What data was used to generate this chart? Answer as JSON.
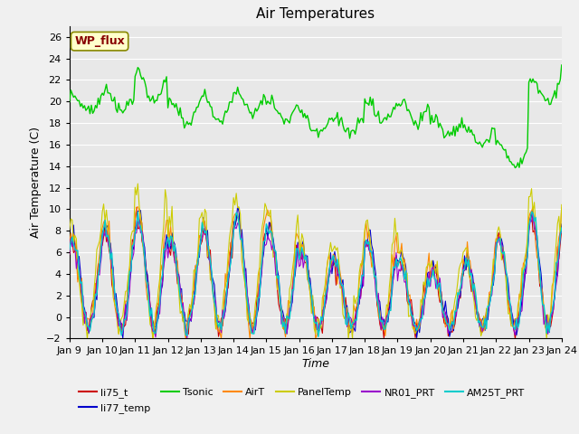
{
  "title": "Air Temperatures",
  "xlabel": "Time",
  "ylabel": "Air Temperature (C)",
  "ylim": [
    -2,
    27
  ],
  "xlim": [
    0,
    360
  ],
  "x_tick_labels": [
    "Jan 9",
    "Jan 10",
    "Jan 11",
    "Jan 12",
    "Jan 13",
    "Jan 14",
    "Jan 15",
    "Jan 16",
    "Jan 17",
    "Jan 18",
    "Jan 19",
    "Jan 20",
    "Jan 21",
    "Jan 22",
    "Jan 23",
    "Jan 24"
  ],
  "x_tick_positions": [
    0,
    24,
    48,
    72,
    96,
    120,
    144,
    168,
    192,
    216,
    240,
    264,
    288,
    312,
    336,
    360
  ],
  "series": {
    "li75_t": {
      "color": "#CC0000",
      "lw": 0.8
    },
    "li77_temp": {
      "color": "#0000CC",
      "lw": 0.8
    },
    "Tsonic": {
      "color": "#00CC00",
      "lw": 1.0
    },
    "AirT": {
      "color": "#FF8800",
      "lw": 0.8
    },
    "PanelTemp": {
      "color": "#CCCC00",
      "lw": 0.8
    },
    "NR01_PRT": {
      "color": "#9900CC",
      "lw": 0.8
    },
    "AM25T_PRT": {
      "color": "#00CCCC",
      "lw": 1.0
    }
  },
  "legend_entries": [
    "li75_t",
    "li77_temp",
    "Tsonic",
    "AirT",
    "PanelTemp",
    "NR01_PRT",
    "AM25T_PRT"
  ],
  "wp_flux_label": "WP_flux",
  "wp_flux_color": "#880000",
  "wp_flux_bg": "#FFFFCC",
  "background_color": "#E8E8E8",
  "plot_bg_color": "#F0F0F0",
  "grid_color": "#FFFFFF",
  "title_fontsize": 11,
  "label_fontsize": 9,
  "tick_fontsize": 8,
  "legend_fontsize": 8
}
